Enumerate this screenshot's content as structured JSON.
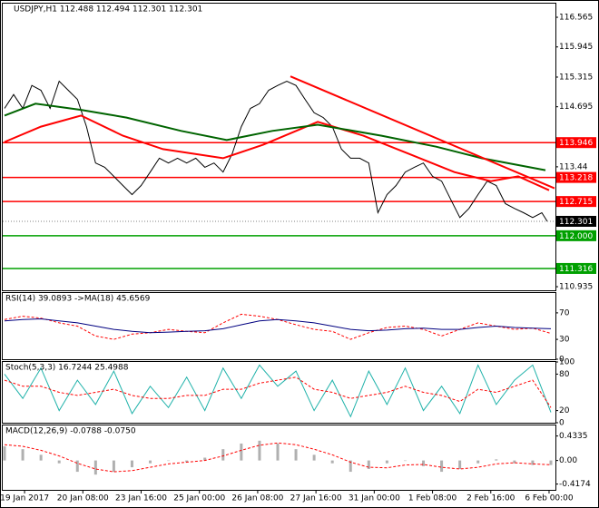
{
  "chart_data": [
    {
      "type": "line",
      "title": "USDJPY,H1  112.488 112.494 112.301 112.301",
      "xlim": [
        -12,
        291.5
      ],
      "ylim": [
        110.86,
        116.85
      ],
      "yticks": [
        116.565,
        115.945,
        115.315,
        114.695,
        113.44,
        110.935
      ],
      "series": [
        {
          "style": "line",
          "color": "#000000",
          "width": 1,
          "x": [
            -11,
            -6,
            -1,
            4,
            9,
            14,
            19,
            24,
            29,
            34,
            39,
            44,
            49,
            54,
            59,
            64,
            69,
            74,
            79,
            84,
            89,
            94,
            99,
            104,
            109,
            114,
            119,
            124,
            129,
            134,
            139,
            144,
            149,
            154,
            159,
            164,
            169,
            174,
            179,
            184,
            189,
            194,
            199,
            204,
            209,
            214,
            219,
            224,
            229,
            234,
            239,
            244,
            249,
            254,
            259,
            264,
            269,
            274,
            279,
            284,
            287
          ],
          "values": [
            114.66,
            114.95,
            114.66,
            115.14,
            115.04,
            114.66,
            115.23,
            115.04,
            114.85,
            114.28,
            113.52,
            113.43,
            113.24,
            113.05,
            112.86,
            113.05,
            113.33,
            113.62,
            113.52,
            113.62,
            113.52,
            113.62,
            113.43,
            113.52,
            113.33,
            113.71,
            114.28,
            114.66,
            114.76,
            115.04,
            115.14,
            115.23,
            115.14,
            114.85,
            114.57,
            114.47,
            114.28,
            113.81,
            113.62,
            113.62,
            113.52,
            112.48,
            112.86,
            113.05,
            113.33,
            113.43,
            113.52,
            113.24,
            113.14,
            112.76,
            112.38,
            112.57,
            112.86,
            113.14,
            113.05,
            112.67,
            112.57,
            112.48,
            112.38,
            112.48,
            112.3
          ]
        },
        {
          "style": "line",
          "color": "#ff0000",
          "width": 2,
          "x": [
            -11,
            9,
            31,
            54,
            76,
            109,
            131,
            161,
            186,
            211,
            236,
            256,
            271,
            288
          ],
          "values": [
            113.96,
            114.28,
            114.51,
            114.09,
            113.81,
            113.62,
            113.9,
            114.38,
            114.09,
            113.71,
            113.33,
            113.14,
            113.24,
            112.95
          ]
        },
        {
          "style": "line",
          "color": "#006400",
          "width": 2,
          "x": [
            -11,
            6,
            31,
            56,
            86,
            111,
            136,
            161,
            196,
            226,
            251,
            286
          ],
          "values": [
            114.51,
            114.76,
            114.63,
            114.47,
            114.19,
            114.0,
            114.19,
            114.32,
            114.09,
            113.86,
            113.62,
            113.37
          ]
        },
        {
          "style": "line",
          "color": "#ff0000",
          "width": 2,
          "x": [
            146,
            291
          ],
          "values": [
            115.33,
            112.99
          ]
        }
      ],
      "levels": [
        {
          "value": 113.946,
          "color": "#ff0000"
        },
        {
          "value": 113.218,
          "color": "#ff0000"
        },
        {
          "value": 112.715,
          "color": "#ff0000"
        },
        {
          "value": 112,
          "label": "112.000",
          "color": "#00a000"
        },
        {
          "value": 111.316,
          "color": "#00a000"
        }
      ],
      "last": 112.301
    },
    {
      "type": "line",
      "title": "RSI(14) 39.0893 ->MA(18) 45.6569",
      "xlim": [
        -12,
        291.5
      ],
      "ylim": [
        0,
        100
      ],
      "yticks": [
        70,
        30,
        0
      ],
      "series": [
        {
          "style": "dashed",
          "color": "#ff0000",
          "width": 1,
          "x": [
            -11,
            -1,
            9,
            19,
            29,
            39,
            49,
            59,
            69,
            79,
            89,
            99,
            109,
            119,
            129,
            139,
            149,
            159,
            169,
            179,
            189,
            199,
            209,
            219,
            229,
            239,
            249,
            259,
            269,
            279,
            289
          ],
          "values": [
            60,
            65,
            62,
            55,
            50,
            35,
            30,
            38,
            40,
            45,
            42,
            40,
            55,
            68,
            65,
            60,
            52,
            45,
            42,
            30,
            40,
            48,
            50,
            45,
            35,
            45,
            55,
            50,
            45,
            47,
            39
          ]
        },
        {
          "style": "line",
          "color": "#000080",
          "width": 1,
          "x": [
            -11,
            -1,
            9,
            19,
            29,
            39,
            49,
            59,
            69,
            79,
            89,
            99,
            109,
            119,
            129,
            139,
            149,
            159,
            169,
            179,
            189,
            199,
            209,
            219,
            229,
            239,
            249,
            259,
            269,
            279,
            289
          ],
          "values": [
            58,
            60,
            61,
            58,
            55,
            50,
            45,
            42,
            40,
            41,
            42,
            43,
            46,
            52,
            58,
            60,
            58,
            55,
            50,
            45,
            43,
            44,
            46,
            47,
            45,
            45,
            48,
            50,
            48,
            47,
            46
          ]
        }
      ]
    },
    {
      "type": "line",
      "title": "Stoch(5,3,3) 16.7244 25.4988",
      "xlim": [
        -12,
        291.5
      ],
      "ylim": [
        0,
        100
      ],
      "yticks": [
        100,
        80,
        20,
        0
      ],
      "series": [
        {
          "style": "line",
          "color": "#20b2aa",
          "width": 1,
          "x": [
            -11,
            -1,
            9,
            19,
            29,
            39,
            49,
            59,
            69,
            79,
            89,
            99,
            109,
            119,
            129,
            139,
            149,
            159,
            169,
            179,
            189,
            199,
            209,
            219,
            229,
            239,
            249,
            259,
            269,
            279,
            289
          ],
          "values": [
            80,
            40,
            90,
            20,
            70,
            30,
            85,
            15,
            60,
            25,
            75,
            20,
            90,
            40,
            95,
            60,
            85,
            20,
            70,
            10,
            85,
            30,
            90,
            20,
            60,
            15,
            95,
            30,
            70,
            95,
            17
          ]
        },
        {
          "style": "dashed",
          "color": "#ff0000",
          "width": 1,
          "x": [
            -11,
            -1,
            9,
            19,
            29,
            39,
            49,
            59,
            69,
            79,
            89,
            99,
            109,
            119,
            129,
            139,
            149,
            159,
            169,
            179,
            189,
            199,
            209,
            219,
            229,
            239,
            249,
            259,
            269,
            279,
            289
          ],
          "values": [
            70,
            60,
            60,
            50,
            45,
            50,
            55,
            45,
            40,
            40,
            45,
            45,
            55,
            55,
            65,
            70,
            75,
            55,
            50,
            40,
            45,
            50,
            60,
            50,
            45,
            35,
            55,
            50,
            60,
            70,
            25
          ]
        }
      ]
    },
    {
      "type": "bar",
      "title": "MACD(12,26,9) -0.0788 -0.0750",
      "xlim": [
        -12,
        291.5
      ],
      "ylim": [
        -0.52,
        0.62
      ],
      "yticks": [
        0.4335,
        {
          "value": 0,
          "label": "0.00"
        },
        -0.4174
      ],
      "xticks": [
        {
          "value": 0,
          "label": "19 Jan 2017"
        },
        {
          "value": 32,
          "label": "20 Jan 08:00"
        },
        {
          "value": 64,
          "label": "23 Jan 16:00"
        },
        {
          "value": 96,
          "label": "25 Jan 00:00"
        },
        {
          "value": 128,
          "label": "26 Jan 08:00"
        },
        {
          "value": 160,
          "label": "27 Jan 16:00"
        },
        {
          "value": 192,
          "label": "31 Jan 00:00"
        },
        {
          "value": 224,
          "label": "1 Feb 08:00"
        },
        {
          "value": 256,
          "label": "2 Feb 16:00"
        },
        {
          "value": 288,
          "label": "6 Feb 00:00"
        }
      ],
      "series": [
        {
          "style": "bar",
          "color": "#b0b0b0",
          "width": 3,
          "x": [
            -11,
            -1,
            9,
            19,
            29,
            39,
            49,
            59,
            69,
            79,
            89,
            99,
            109,
            119,
            129,
            139,
            149,
            159,
            169,
            179,
            189,
            199,
            209,
            219,
            229,
            239,
            249,
            259,
            269,
            279,
            289
          ],
          "values": [
            0.25,
            0.2,
            0.1,
            -0.05,
            -0.2,
            -0.25,
            -0.2,
            -0.12,
            -0.05,
            0.0,
            -0.03,
            0.05,
            0.2,
            0.3,
            0.35,
            0.3,
            0.2,
            0.1,
            -0.05,
            -0.2,
            -0.15,
            -0.05,
            0.0,
            -0.1,
            -0.2,
            -0.15,
            -0.05,
            0.02,
            -0.05,
            -0.08,
            -0.08
          ]
        },
        {
          "style": "dashed",
          "color": "#ff0000",
          "width": 1,
          "x": [
            -11,
            -1,
            9,
            19,
            29,
            39,
            49,
            59,
            69,
            79,
            89,
            99,
            109,
            119,
            129,
            139,
            149,
            159,
            169,
            179,
            189,
            199,
            209,
            219,
            229,
            239,
            249,
            259,
            269,
            279,
            289
          ],
          "values": [
            0.28,
            0.25,
            0.18,
            0.08,
            -0.05,
            -0.15,
            -0.2,
            -0.18,
            -0.12,
            -0.06,
            -0.03,
            0.0,
            0.08,
            0.18,
            0.27,
            0.31,
            0.28,
            0.2,
            0.1,
            -0.03,
            -0.12,
            -0.13,
            -0.08,
            -0.07,
            -0.12,
            -0.15,
            -0.12,
            -0.06,
            -0.04,
            -0.06,
            -0.075
          ]
        }
      ]
    }
  ]
}
